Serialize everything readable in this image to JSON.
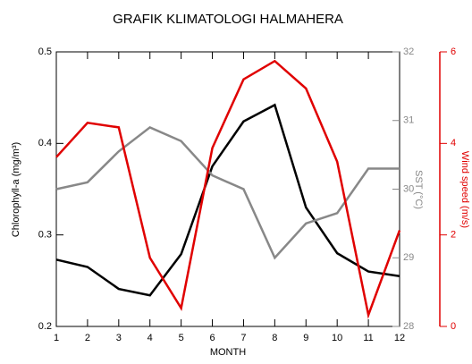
{
  "chart_data": {
    "type": "line",
    "title": "GRAFIK KLIMATOLOGI HALMAHERA",
    "x_label": "MONTH",
    "y_label": "Chlorophyll-a (mg/m³)",
    "y2_label": "SST (°C)",
    "y3_label": "Wind speed (m/s)",
    "x": [
      1,
      2,
      3,
      4,
      5,
      6,
      7,
      8,
      9,
      10,
      11,
      12
    ],
    "xlim": [
      1,
      12
    ],
    "xticks": [
      1,
      2,
      3,
      4,
      5,
      6,
      7,
      8,
      9,
      10,
      11,
      12
    ],
    "ylim": [
      0.2,
      0.5
    ],
    "yticks": [
      0.2,
      0.3,
      0.4,
      0.5
    ],
    "y2lim": [
      28,
      32
    ],
    "y2ticks": [
      28,
      29,
      30,
      31,
      32
    ],
    "y2color": "#888888",
    "y3lim": [
      0,
      6
    ],
    "y3ticks": [
      0,
      2,
      4,
      6
    ],
    "y3color": "#e00000",
    "series": [
      {
        "color": "#000000",
        "axis": "y",
        "values": [
          0.273,
          0.265,
          0.241,
          0.234,
          0.279,
          0.375,
          0.424,
          0.442,
          0.33,
          0.28,
          0.26,
          0.255
        ]
      },
      {
        "color": "#888888",
        "axis": "y2",
        "values": [
          30.0,
          30.1,
          30.55,
          30.9,
          30.7,
          30.2,
          30.0,
          29.0,
          29.5,
          29.65,
          30.3,
          30.3
        ]
      },
      {
        "color": "#e00000",
        "axis": "y3",
        "values": [
          3.7,
          4.45,
          4.35,
          1.5,
          0.4,
          3.9,
          5.4,
          5.8,
          5.2,
          3.6,
          0.25,
          2.1
        ]
      }
    ]
  }
}
